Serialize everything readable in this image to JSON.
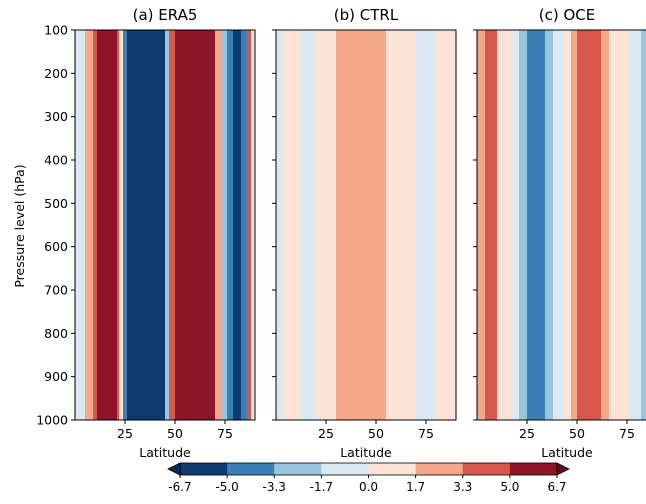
{
  "chart_data": {
    "type": "heatmap",
    "ylabel": "Pressure level (hPa)",
    "xlabel": "Latitude",
    "ylim": [
      1000,
      100
    ],
    "xlim": [
      0,
      90
    ],
    "yticks": [
      "100",
      "200",
      "300",
      "400",
      "500",
      "600",
      "700",
      "800",
      "900",
      "1000"
    ],
    "xticks": [
      "25",
      "50",
      "75"
    ],
    "colorbar": {
      "ticks": [
        "-6.7",
        "-5.0",
        "-3.3",
        "-1.7",
        "0.0",
        "1.7",
        "3.3",
        "5.0",
        "6.7"
      ],
      "colors": [
        "#0d3b6e",
        "#3b7fb9",
        "#99c6df",
        "#dbe9f3",
        "#fde3d6",
        "#f4a889",
        "#d6584c",
        "#8e1428"
      ],
      "extend": "both"
    },
    "panels": [
      {
        "title": "(a) ERA5",
        "bands": [
          {
            "x0": 0,
            "x1": 5,
            "level": -1
          },
          {
            "x0": 5,
            "x1": 9,
            "level": 2
          },
          {
            "x0": 9,
            "x1": 11,
            "level": 3
          },
          {
            "x0": 11,
            "x1": 21,
            "level": 4
          },
          {
            "x0": 21,
            "x1": 22,
            "level": 3
          },
          {
            "x0": 22,
            "x1": 24,
            "level": 1
          },
          {
            "x0": 24,
            "x1": 26,
            "level": -3
          },
          {
            "x0": 26,
            "x1": 45,
            "level": -4
          },
          {
            "x0": 45,
            "x1": 47,
            "level": -2
          },
          {
            "x0": 47,
            "x1": 50,
            "level": 3
          },
          {
            "x0": 50,
            "x1": 70,
            "level": 4
          },
          {
            "x0": 70,
            "x1": 73,
            "level": 2
          },
          {
            "x0": 73,
            "x1": 76,
            "level": -2
          },
          {
            "x0": 76,
            "x1": 79,
            "level": -3
          },
          {
            "x0": 79,
            "x1": 83,
            "level": -4
          },
          {
            "x0": 83,
            "x1": 86,
            "level": -3
          },
          {
            "x0": 86,
            "x1": 88,
            "level": 3
          },
          {
            "x0": 88,
            "x1": 90,
            "level": -1
          }
        ]
      },
      {
        "title": "(b) CTRL",
        "bands": [
          {
            "x0": 0,
            "x1": 4,
            "level": -1
          },
          {
            "x0": 4,
            "x1": 12,
            "level": 1
          },
          {
            "x0": 12,
            "x1": 20,
            "level": -1
          },
          {
            "x0": 20,
            "x1": 30,
            "level": 1
          },
          {
            "x0": 30,
            "x1": 55,
            "level": 2
          },
          {
            "x0": 55,
            "x1": 70,
            "level": 1
          },
          {
            "x0": 70,
            "x1": 80,
            "level": -1
          },
          {
            "x0": 80,
            "x1": 90,
            "level": 1
          }
        ]
      },
      {
        "title": "(c) OCE",
        "bands": [
          {
            "x0": 0,
            "x1": 4,
            "level": 2
          },
          {
            "x0": 4,
            "x1": 10,
            "level": 3
          },
          {
            "x0": 10,
            "x1": 17,
            "level": 1
          },
          {
            "x0": 17,
            "x1": 21,
            "level": -1
          },
          {
            "x0": 21,
            "x1": 25,
            "level": -2
          },
          {
            "x0": 25,
            "x1": 34,
            "level": -3
          },
          {
            "x0": 34,
            "x1": 38,
            "level": -2
          },
          {
            "x0": 38,
            "x1": 43,
            "level": -1
          },
          {
            "x0": 43,
            "x1": 47,
            "level": 1
          },
          {
            "x0": 47,
            "x1": 50,
            "level": 2
          },
          {
            "x0": 50,
            "x1": 62,
            "level": 3
          },
          {
            "x0": 62,
            "x1": 66,
            "level": 2
          },
          {
            "x0": 66,
            "x1": 75,
            "level": 1
          },
          {
            "x0": 75,
            "x1": 82,
            "level": -1
          },
          {
            "x0": 82,
            "x1": 90,
            "level": -2
          }
        ]
      }
    ]
  }
}
